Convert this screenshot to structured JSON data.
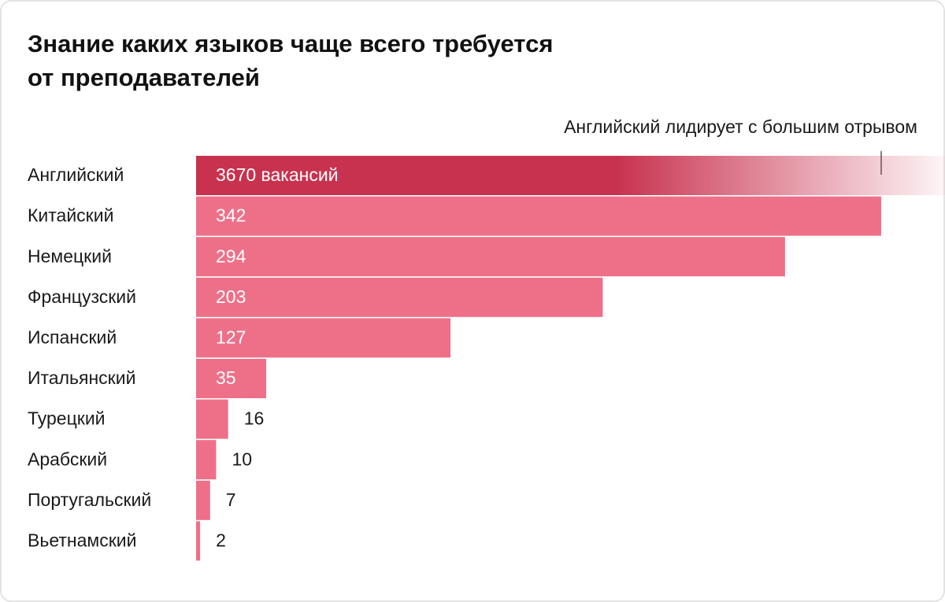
{
  "chart_data": {
    "type": "bar",
    "orientation": "horizontal",
    "title": "Знание каких языков чаще всего требуется\nот преподавателей",
    "annotation": "Английский лидирует с большим отрывом",
    "categories": [
      "Английский",
      "Китайский",
      "Немецкий",
      "Французский",
      "Испанский",
      "Итальянский",
      "Турецкий",
      "Арабский",
      "Португальский",
      "Вьетнамский"
    ],
    "values": [
      3670,
      342,
      294,
      203,
      127,
      35,
      16,
      10,
      7,
      2
    ],
    "value_labels": [
      "3670 вакансий",
      "342",
      "294",
      "203",
      "127",
      "35",
      "16",
      "10",
      "7",
      "2"
    ],
    "color": "#ee7088",
    "highlight_color": "#c8324f",
    "broken_bars": [
      0
    ]
  }
}
